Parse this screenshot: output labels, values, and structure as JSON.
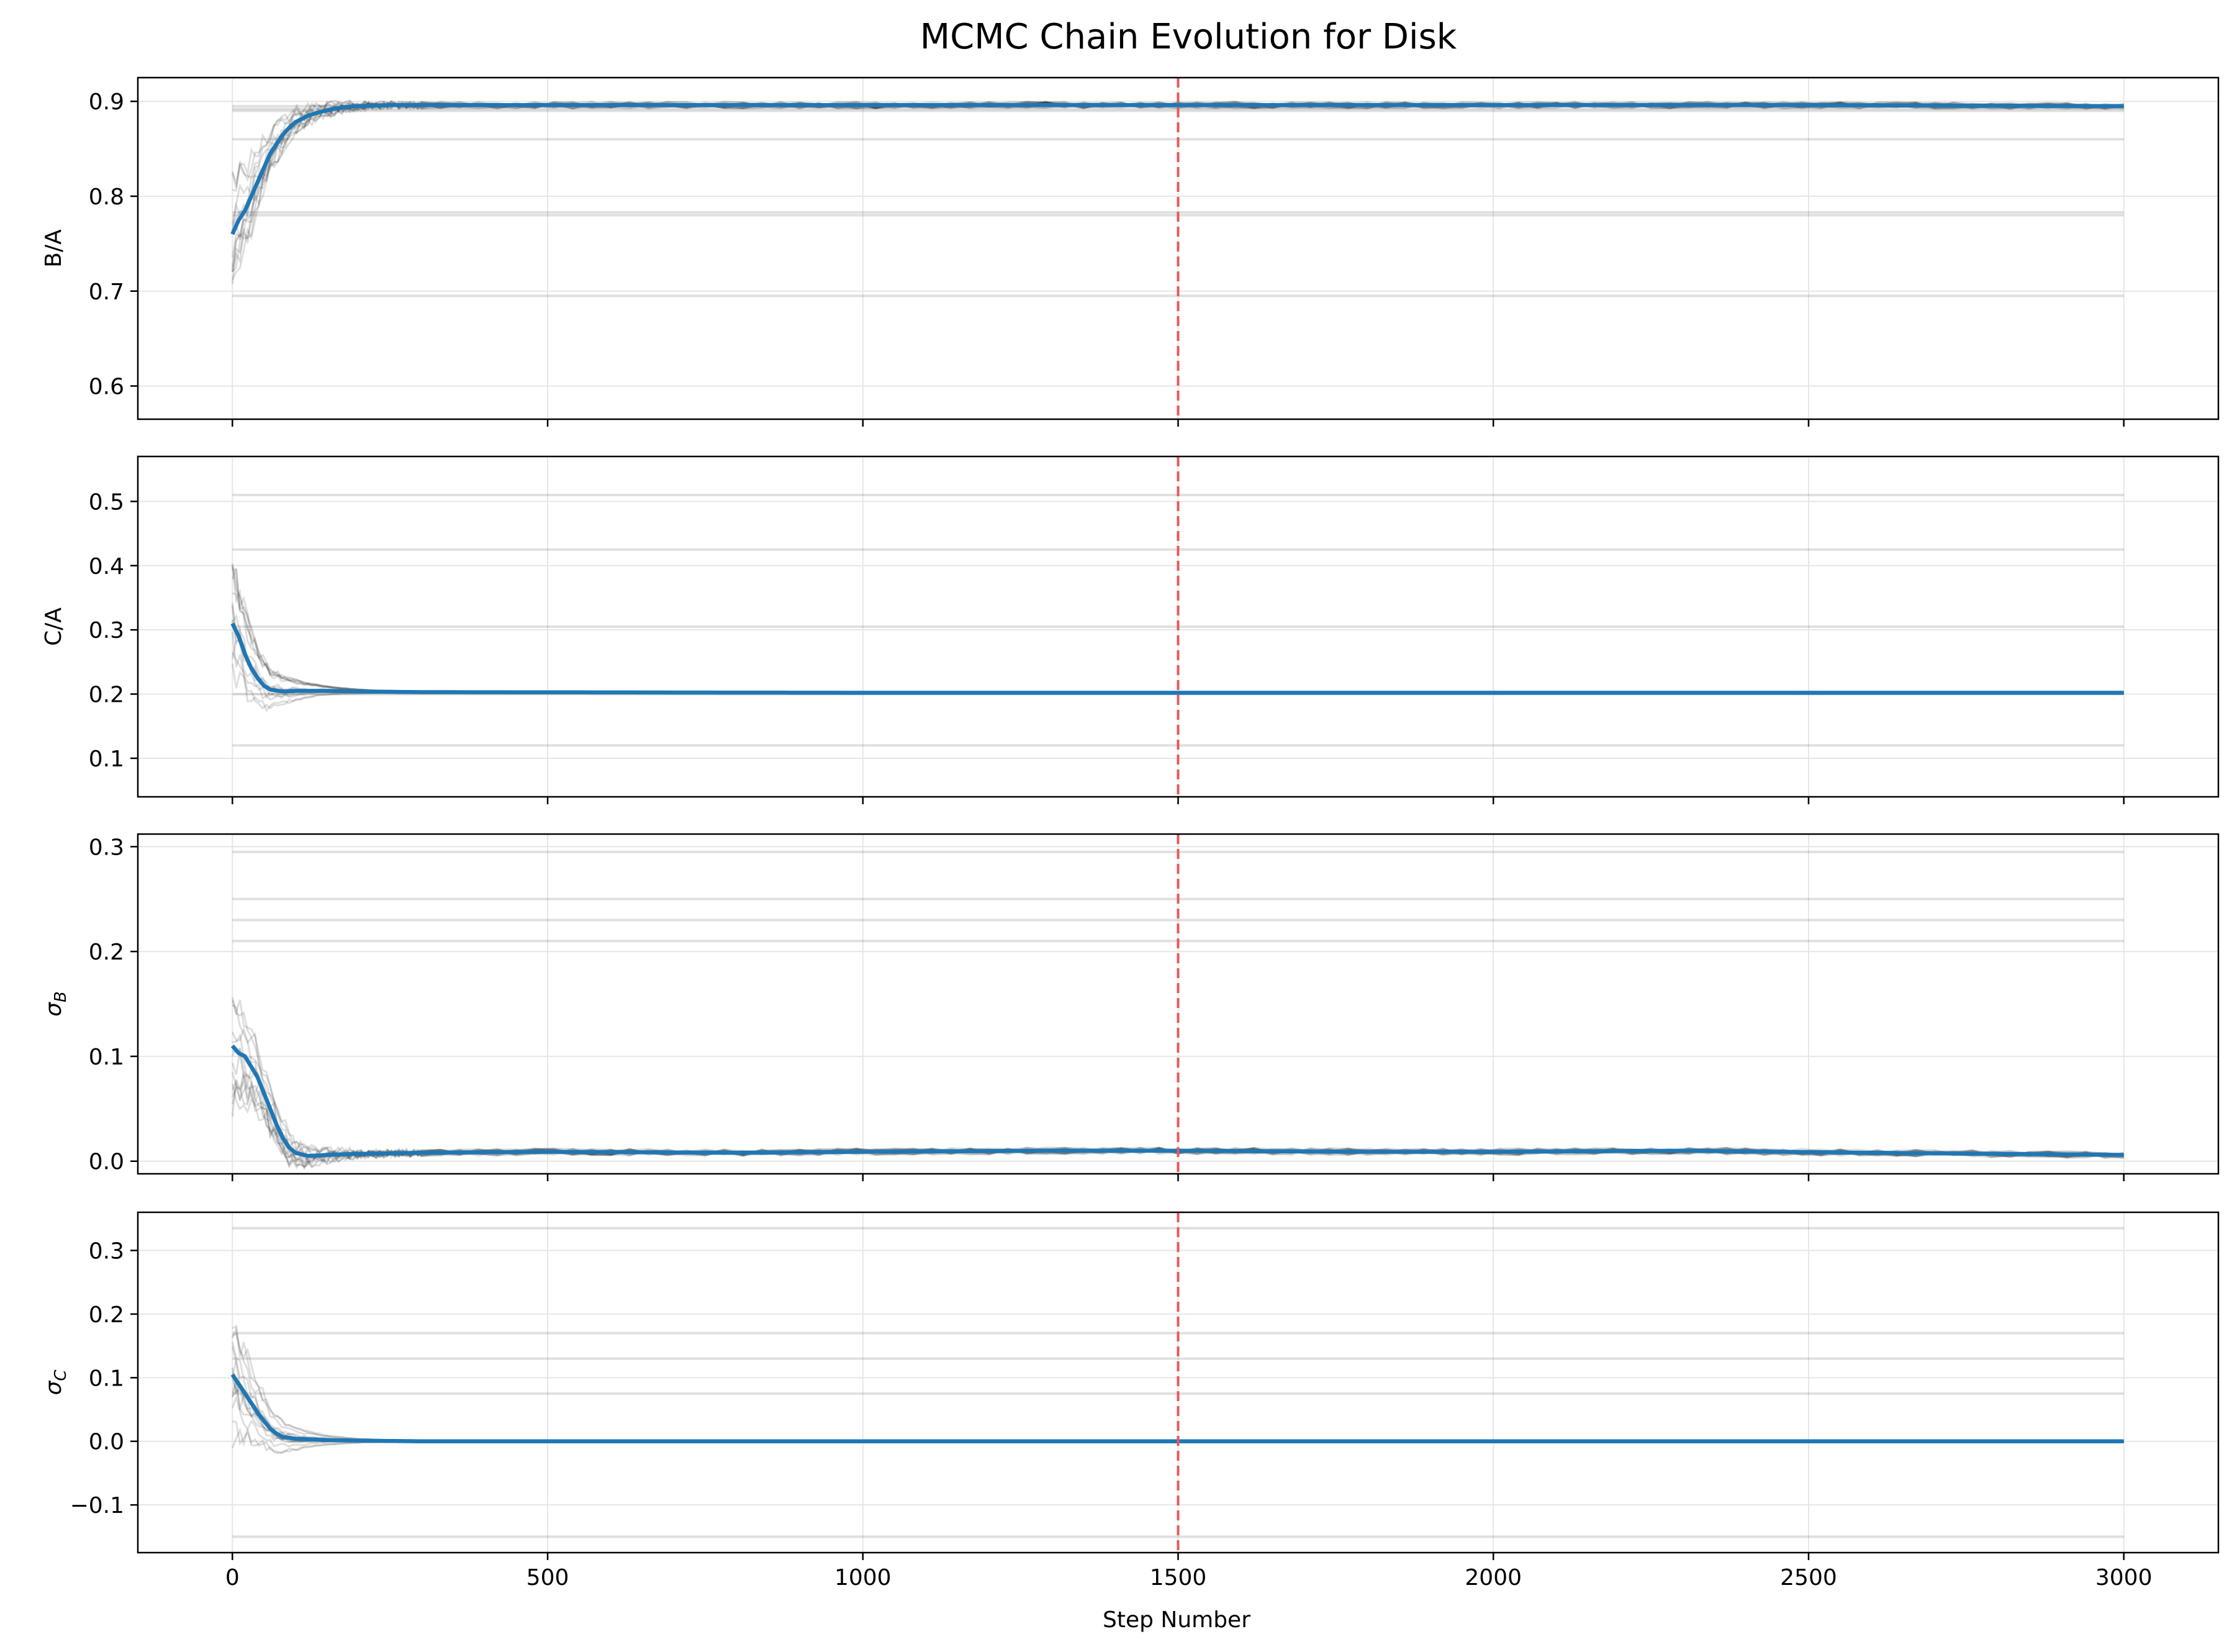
{
  "figure": {
    "title": "MCMC Chain Evolution for Disk",
    "xlabel": "Step Number",
    "x_ticks": [
      "0",
      "500",
      "1000",
      "1500",
      "2000",
      "2500",
      "3000"
    ]
  },
  "colors": {
    "mean_line": "#1f77b4",
    "walker_lines": "#000000",
    "burn_in_marker": "#e8585a",
    "grid": "#e6e6e6"
  },
  "chart_data": [
    {
      "type": "line",
      "ylabel": "B/A",
      "xlim": [
        -150,
        3150
      ],
      "ylim": [
        0.565,
        0.925
      ],
      "y_ticks": [
        "0.6",
        "0.7",
        "0.8",
        "0.9"
      ],
      "y_tick_values": [
        0.6,
        0.7,
        0.8,
        0.9
      ],
      "burn_in_step": 1500,
      "stuck_walkers": [
        0.895,
        0.892,
        0.89,
        0.86,
        0.783,
        0.78,
        0.695
      ],
      "series": [
        {
          "x": [
            0,
            10,
            20,
            30,
            40,
            50,
            60,
            70,
            80,
            90,
            100,
            120,
            140,
            160,
            180,
            200,
            250,
            300,
            500,
            1000,
            1500,
            2000,
            2500,
            3000
          ],
          "values": [
            0.76,
            0.775,
            0.785,
            0.8,
            0.815,
            0.83,
            0.845,
            0.855,
            0.865,
            0.872,
            0.878,
            0.885,
            0.889,
            0.892,
            0.894,
            0.895,
            0.896,
            0.896,
            0.896,
            0.896,
            0.896,
            0.896,
            0.896,
            0.895
          ]
        }
      ]
    },
    {
      "type": "line",
      "ylabel": "C/A",
      "xlim": [
        -150,
        3150
      ],
      "ylim": [
        0.04,
        0.57
      ],
      "y_ticks": [
        "0.1",
        "0.2",
        "0.3",
        "0.4",
        "0.5"
      ],
      "y_tick_values": [
        0.1,
        0.2,
        0.3,
        0.4,
        0.5
      ],
      "burn_in_step": 1500,
      "stuck_walkers": [
        0.51,
        0.425,
        0.305,
        0.2,
        0.12
      ],
      "series": [
        {
          "x": [
            0,
            10,
            20,
            30,
            40,
            50,
            60,
            80,
            100,
            150,
            200,
            300,
            1000,
            1500,
            2000,
            2500,
            3000
          ],
          "values": [
            0.31,
            0.29,
            0.262,
            0.24,
            0.225,
            0.213,
            0.207,
            0.204,
            0.205,
            0.205,
            0.204,
            0.203,
            0.202,
            0.202,
            0.202,
            0.202,
            0.202
          ]
        }
      ]
    },
    {
      "type": "line",
      "ylabel": "σB",
      "xlim": [
        -150,
        3150
      ],
      "ylim": [
        -0.012,
        0.312
      ],
      "y_ticks": [
        "0.0",
        "0.1",
        "0.2",
        "0.3"
      ],
      "y_tick_values": [
        0.0,
        0.1,
        0.2,
        0.3
      ],
      "burn_in_step": 1500,
      "stuck_walkers": [
        0.295,
        0.25,
        0.23,
        0.21
      ],
      "series": [
        {
          "x": [
            0,
            10,
            20,
            30,
            40,
            50,
            60,
            70,
            80,
            90,
            100,
            120,
            150,
            200,
            300,
            500,
            800,
            1000,
            1300,
            1500,
            1800,
            2000,
            2300,
            2600,
            3000
          ],
          "values": [
            0.11,
            0.103,
            0.1,
            0.09,
            0.08,
            0.065,
            0.05,
            0.035,
            0.022,
            0.013,
            0.008,
            0.005,
            0.006,
            0.007,
            0.008,
            0.009,
            0.008,
            0.009,
            0.01,
            0.01,
            0.009,
            0.009,
            0.01,
            0.008,
            0.006
          ]
        }
      ]
    },
    {
      "type": "line",
      "ylabel": "σC",
      "xlim": [
        -150,
        3150
      ],
      "ylim": [
        -0.175,
        0.36
      ],
      "y_ticks": [
        "−0.1",
        "0.0",
        "0.1",
        "0.2",
        "0.3"
      ],
      "y_tick_values": [
        -0.1,
        0.0,
        0.1,
        0.2,
        0.3
      ],
      "burn_in_step": 1500,
      "stuck_walkers": [
        0.335,
        0.17,
        0.13,
        0.075,
        -0.15
      ],
      "series": [
        {
          "x": [
            0,
            10,
            20,
            30,
            40,
            50,
            60,
            70,
            80,
            100,
            150,
            200,
            300,
            1000,
            1500,
            2000,
            3000
          ],
          "values": [
            0.105,
            0.09,
            0.075,
            0.06,
            0.045,
            0.032,
            0.02,
            0.012,
            0.007,
            0.004,
            0.002,
            0.001,
            0.0,
            0.0,
            0.0,
            0.0,
            0.0
          ]
        }
      ]
    }
  ]
}
